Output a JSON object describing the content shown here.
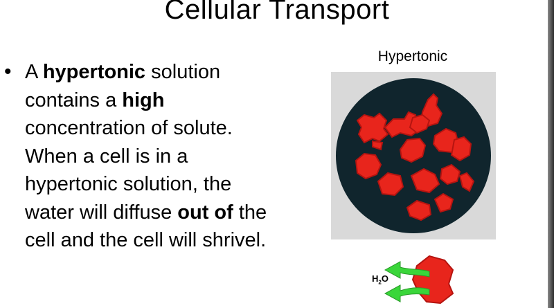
{
  "slide": {
    "title": "Cellular Transport",
    "bullet": {
      "symbol": "•",
      "segments": [
        {
          "text": "A ",
          "bold": false
        },
        {
          "text": "hypertonic",
          "bold": true
        },
        {
          "text": " solution contains a ",
          "bold": false
        },
        {
          "text": "high",
          "bold": true
        },
        {
          "text": " concentration of solute. When a cell is in a hypertonic solution, the water will diffuse ",
          "bold": false
        },
        {
          "text": "out of",
          "bold": true
        },
        {
          "text": " the cell and the cell will shrivel.",
          "bold": false
        }
      ]
    },
    "figure": {
      "label": "Hypertonic",
      "water_label_main": "H",
      "water_label_sub": "2",
      "water_label_tail": "O",
      "colors": {
        "panel": "#d9d9d9",
        "dish": "#10252d",
        "cell": "#e8251c",
        "cell_dark": "#b51410",
        "arrow": "#3ad63a"
      }
    }
  }
}
